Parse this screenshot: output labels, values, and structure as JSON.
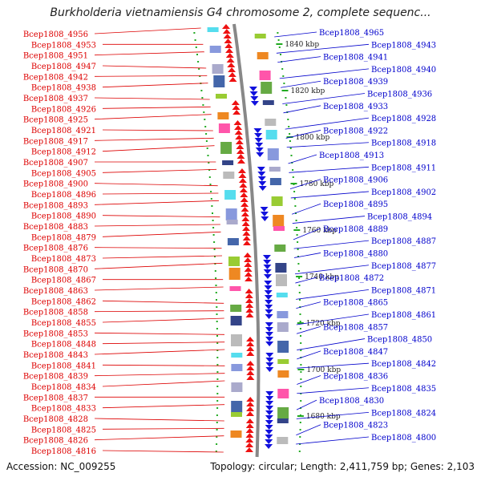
{
  "title": "Burkholderia vietnamiensis G4 chromosome 2, complete sequenc...",
  "footer": {
    "accession_label": "Accession:",
    "accession": "NC_009255",
    "topology": "Topology: circular; Length: 2,411,759 bp; Genes: 2,103"
  },
  "colors": {
    "left_label": "#dd0000",
    "right_label": "#0000cc",
    "forward_arrow": "#ee1111",
    "reverse_arrow": "#1111dd",
    "backbone": "#888888",
    "tick": "#22aa22"
  },
  "scale_ticks": [
    "1840 kbp",
    "1820 kbp",
    "1800 kbp",
    "1780 kbp",
    "1760 kbp",
    "1740 kbp",
    "1720 kbp",
    "1700 kbp",
    "1680 kbp"
  ],
  "left_genes": [
    "Bcep1808_4956",
    "Bcep1808_4953",
    "Bcep1808_4951",
    "Bcep1808_4947",
    "Bcep1808_4942",
    "Bcep1808_4938",
    "Bcep1808_4937",
    "Bcep1808_4926",
    "Bcep1808_4925",
    "Bcep1808_4921",
    "Bcep1808_4917",
    "Bcep1808_4912",
    "Bcep1808_4907",
    "Bcep1808_4905",
    "Bcep1808_4900",
    "Bcep1808_4896",
    "Bcep1808_4893",
    "Bcep1808_4890",
    "Bcep1808_4883",
    "Bcep1808_4879",
    "Bcep1808_4876",
    "Bcep1808_4873",
    "Bcep1808_4870",
    "Bcep1808_4867",
    "Bcep1808_4863",
    "Bcep1808_4862",
    "Bcep1808_4858",
    "Bcep1808_4855",
    "Bcep1808_4853",
    "Bcep1808_4848",
    "Bcep1808_4843",
    "Bcep1808_4841",
    "Bcep1808_4839",
    "Bcep1808_4834",
    "Bcep1808_4837",
    "Bcep1808_4833",
    "Bcep1808_4828",
    "Bcep1808_4825",
    "Bcep1808_4826",
    "Bcep1808_4816"
  ],
  "right_genes": [
    "Bcep1808_4965",
    "Bcep1808_4943",
    "Bcep1808_4941",
    "Bcep1808_4940",
    "Bcep1808_4939",
    "Bcep1808_4936",
    "Bcep1808_4933",
    "Bcep1808_4928",
    "Bcep1808_4922",
    "Bcep1808_4918",
    "Bcep1808_4913",
    "Bcep1808_4911",
    "Bcep1808_4906",
    "Bcep1808_4902",
    "Bcep1808_4895",
    "Bcep1808_4894",
    "Bcep1808_4889",
    "Bcep1808_4887",
    "Bcep1808_4880",
    "Bcep1808_4877",
    "Bcep1808_4872",
    "Bcep1808_4871",
    "Bcep1808_4865",
    "Bcep1808_4861",
    "Bcep1808_4857",
    "Bcep1808_4850",
    "Bcep1808_4847",
    "Bcep1808_4842",
    "Bcep1808_4836",
    "Bcep1808_4835",
    "Bcep1808_4830",
    "Bcep1808_4824",
    "Bcep1808_4823",
    "Bcep1808_4800"
  ]
}
